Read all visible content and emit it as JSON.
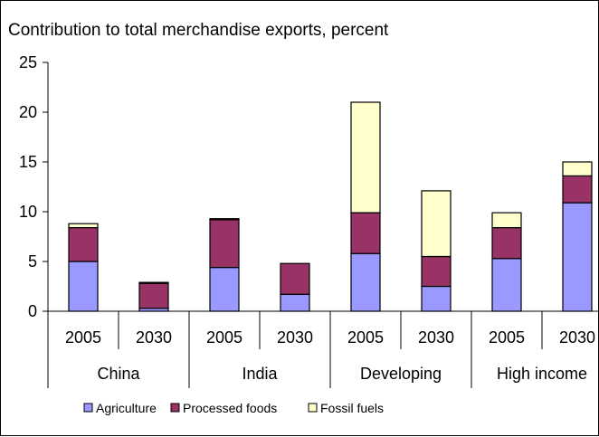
{
  "chart_data": {
    "type": "bar",
    "stacked": true,
    "title": "Contribution to total merchandise exports, percent",
    "xlabel": "",
    "ylabel": "",
    "ylim": [
      0,
      25
    ],
    "yticks": [
      0,
      5,
      10,
      15,
      20,
      25
    ],
    "grid": false,
    "legend_position": "bottom",
    "groups": [
      {
        "label": "China",
        "categories": [
          "2005",
          "2030"
        ]
      },
      {
        "label": "India",
        "categories": [
          "2005",
          "2030"
        ]
      },
      {
        "label": "Developing",
        "categories": [
          "2005",
          "2030"
        ]
      },
      {
        "label": "High income",
        "categories": [
          "2005",
          "2030"
        ]
      }
    ],
    "categories": [
      "2005",
      "2030",
      "2005",
      "2030",
      "2005",
      "2030",
      "2005",
      "2030"
    ],
    "series": [
      {
        "name": "Agriculture",
        "color": "#9999ff",
        "values": [
          5.0,
          0.3,
          4.4,
          1.7,
          5.8,
          2.5,
          5.3,
          10.9
        ]
      },
      {
        "name": "Processed foods",
        "color": "#993366",
        "values": [
          3.4,
          2.5,
          4.8,
          3.1,
          4.1,
          3.0,
          3.1,
          2.7
        ]
      },
      {
        "name": "Fossil fuels",
        "color": "#ffffcc",
        "values": [
          0.4,
          0.1,
          0.1,
          0.0,
          11.1,
          6.6,
          1.5,
          1.4
        ]
      }
    ]
  }
}
